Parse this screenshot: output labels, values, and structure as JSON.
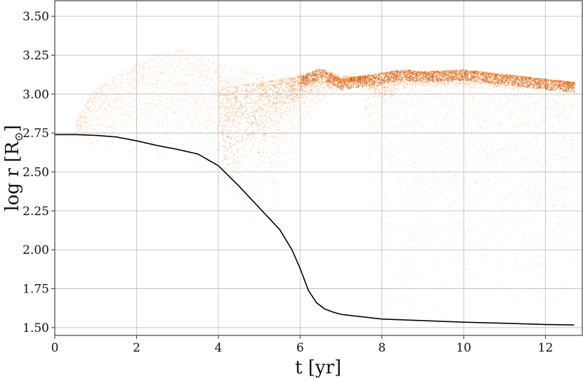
{
  "chart_data": {
    "type": "scatter",
    "title": "",
    "xlabel": "t [yr]",
    "ylabel_main": "log r [R",
    "ylabel_sub": "⊙",
    "ylabel_close": "]",
    "xlim": [
      0,
      12.9
    ],
    "ylim": [
      1.45,
      3.6
    ],
    "grid": true,
    "x_ticks": [
      0,
      2,
      4,
      6,
      8,
      10,
      12
    ],
    "x_tick_labels": [
      "0",
      "2",
      "4",
      "6",
      "8",
      "10",
      "12"
    ],
    "y_ticks": [
      1.5,
      1.75,
      2.0,
      2.25,
      2.5,
      2.75,
      3.0,
      3.25,
      3.5
    ],
    "y_tick_labels": [
      "1.50",
      "1.75",
      "2.00",
      "2.25",
      "2.50",
      "2.75",
      "3.00",
      "3.25",
      "3.50"
    ],
    "colors": {
      "scatter": "#f07a1a",
      "line": "#000000",
      "grid": "#b8b8b8"
    },
    "series": [
      {
        "kind": "line",
        "x": [
          0,
          0.5,
          1.0,
          1.5,
          2.0,
          2.5,
          3.0,
          3.5,
          4.0,
          4.5,
          5.0,
          5.5,
          5.8,
          6.0,
          6.2,
          6.4,
          6.6,
          6.8,
          7.0,
          7.5,
          8.0,
          9.0,
          10.0,
          11.0,
          12.0,
          12.7
        ],
        "y": [
          2.74,
          2.74,
          2.735,
          2.725,
          2.7,
          2.67,
          2.645,
          2.615,
          2.54,
          2.41,
          2.27,
          2.13,
          2.0,
          1.88,
          1.74,
          1.66,
          1.62,
          1.6,
          1.585,
          1.57,
          1.555,
          1.545,
          1.535,
          1.528,
          1.52,
          1.517
        ]
      },
      {
        "kind": "band",
        "note_description": "orange scatter envelope",
        "x": [
          0.5,
          1.0,
          2.0,
          3.0,
          4.0,
          4.5,
          5.0,
          5.5,
          6.0,
          6.5,
          7.0,
          7.5,
          8.0,
          8.5,
          9.0,
          10.0,
          11.0,
          12.0,
          12.7
        ],
        "upper": [
          2.85,
          3.05,
          3.22,
          3.3,
          3.2,
          3.17,
          3.15,
          3.12,
          3.14,
          3.17,
          3.12,
          3.12,
          3.15,
          3.16,
          3.16,
          3.17,
          3.14,
          3.1,
          3.08
        ],
        "lower": [
          2.7,
          2.65,
          2.6,
          2.55,
          2.45,
          2.25,
          2.15,
          2.3,
          2.7,
          2.92,
          3.05,
          3.06,
          1.5,
          1.5,
          1.55,
          1.6,
          1.6,
          1.6,
          1.7
        ]
      },
      {
        "kind": "dense_band",
        "x": [
          4.0,
          5.0,
          6.0,
          6.5,
          7.0,
          7.5,
          8.0,
          8.5,
          9.0,
          10.0,
          11.0,
          12.0,
          12.7
        ],
        "upper": [
          3.05,
          3.08,
          3.12,
          3.17,
          3.1,
          3.12,
          3.14,
          3.16,
          3.15,
          3.16,
          3.13,
          3.1,
          3.08
        ],
        "lower": [
          2.3,
          2.5,
          2.95,
          2.98,
          3.05,
          3.08,
          2.9,
          3.02,
          3.04,
          3.03,
          3.03,
          3.02,
          3.02
        ]
      }
    ]
  }
}
